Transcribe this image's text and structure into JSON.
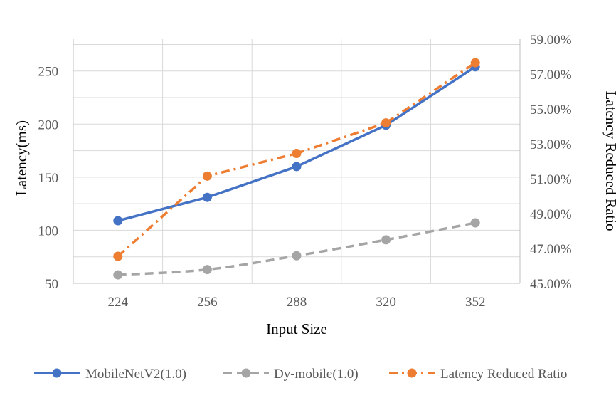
{
  "chart_data": {
    "type": "line",
    "categories": [
      "224",
      "256",
      "288",
      "320",
      "352"
    ],
    "xlabel": "Input Size",
    "ylabel": "Latency(ms)",
    "y2label": "Latency Reduced Ratio",
    "ylim": [
      50,
      280
    ],
    "yticks": [
      "50",
      "100",
      "150",
      "200",
      "250"
    ],
    "y2lim": [
      0.45,
      0.59
    ],
    "y2ticks": [
      "45.00%",
      "47.00%",
      "49.00%",
      "51.00%",
      "53.00%",
      "55.00%",
      "57.00%",
      "59.00%"
    ],
    "grid": true,
    "legend_position": "bottom",
    "series": [
      {
        "name": "MobileNetV2(1.0)",
        "axis": "left",
        "values": [
          109,
          131,
          160,
          199,
          254
        ],
        "color": "#4472C4",
        "dash": "solid"
      },
      {
        "name": "Dy-mobile(1.0)",
        "axis": "left",
        "values": [
          58,
          63,
          76,
          91,
          107
        ],
        "color": "#A5A5A5",
        "dash": "dashed"
      },
      {
        "name": "Latency Reduced Ratio",
        "axis": "right",
        "values": [
          0.4655,
          0.5115,
          0.5245,
          0.542,
          0.5765
        ],
        "color": "#ED7D31",
        "dash": "dash-dot"
      }
    ]
  }
}
